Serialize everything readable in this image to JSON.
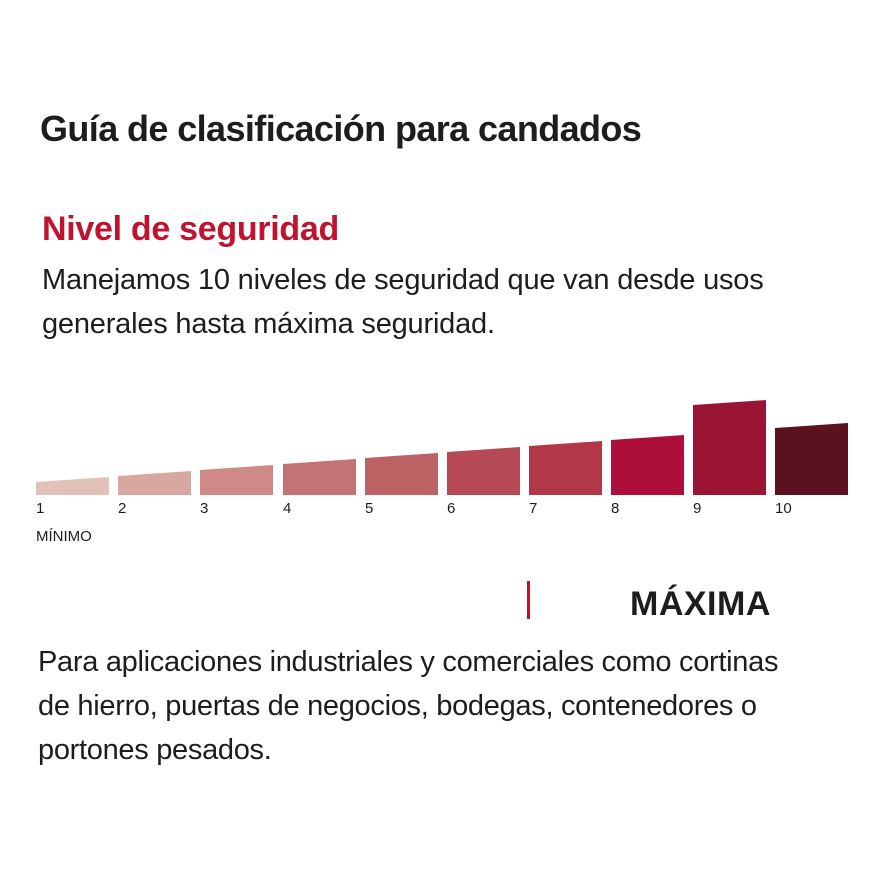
{
  "title": "Guía de clasificación para candados",
  "subtitle": "Nivel de seguridad",
  "intro_lines": [
    "Manejamos 10 niveles de seguridad que van desde usos",
    "generales hasta máxima seguridad."
  ],
  "scale": {
    "levels": [
      "1",
      "2",
      "3",
      "4",
      "5",
      "6",
      "7",
      "8",
      "9",
      "10"
    ],
    "colors": [
      "#e2c2b8",
      "#d9a7a2",
      "#cf8a87",
      "#c37373",
      "#bc6264",
      "#b54a55",
      "#b23848",
      "#ad0f3a",
      "#9a1533",
      "#5c111e"
    ],
    "min_label": "MÍNIMO",
    "selected_level": "9"
  },
  "level_name": "MÁXIMA",
  "description_lines": [
    "Para aplicaciones industriales y comerciales como cortinas",
    "de hierro, puertas de negocios, bodegas, contenedores o",
    "portones pesados."
  ]
}
